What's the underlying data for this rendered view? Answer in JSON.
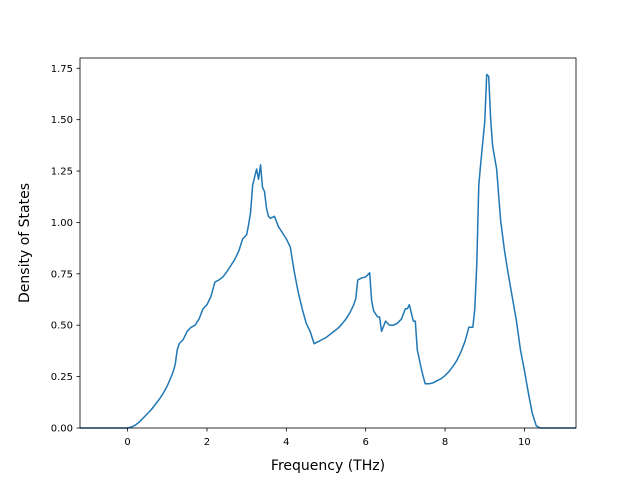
{
  "chart_data": {
    "type": "line",
    "title": "",
    "xlabel": "Frequency (THz)",
    "ylabel": "Density of States",
    "xlim": [
      -1.2,
      11.3
    ],
    "ylim": [
      0,
      1.8
    ],
    "x_ticks": [
      0,
      2,
      4,
      6,
      8,
      10
    ],
    "x_tick_labels": [
      "0",
      "2",
      "4",
      "6",
      "8",
      "10"
    ],
    "y_ticks": [
      0.0,
      0.25,
      0.5,
      0.75,
      1.0,
      1.25,
      1.5,
      1.75
    ],
    "y_tick_labels": [
      "0.00",
      "0.25",
      "0.50",
      "0.75",
      "1.00",
      "1.25",
      "1.50",
      "1.75"
    ],
    "grid": false,
    "legend": "none",
    "series": [
      {
        "color": "#1f77b4",
        "x": [
          -1.2,
          -0.5,
          0.0,
          0.1,
          0.2,
          0.3,
          0.4,
          0.5,
          0.6,
          0.7,
          0.8,
          0.9,
          1.0,
          1.1,
          1.15,
          1.2,
          1.25,
          1.3,
          1.4,
          1.5,
          1.6,
          1.7,
          1.8,
          1.9,
          2.0,
          2.1,
          2.2,
          2.3,
          2.4,
          2.5,
          2.6,
          2.7,
          2.8,
          2.9,
          3.0,
          3.05,
          3.1,
          3.15,
          3.2,
          3.25,
          3.3,
          3.35,
          3.4,
          3.45,
          3.5,
          3.55,
          3.6,
          3.7,
          3.8,
          3.9,
          4.0,
          4.1,
          4.2,
          4.3,
          4.4,
          4.5,
          4.6,
          4.7,
          4.8,
          4.9,
          5.0,
          5.1,
          5.2,
          5.3,
          5.4,
          5.5,
          5.6,
          5.7,
          5.75,
          5.8,
          5.9,
          6.0,
          6.05,
          6.1,
          6.15,
          6.2,
          6.3,
          6.35,
          6.4,
          6.5,
          6.6,
          6.7,
          6.8,
          6.9,
          7.0,
          7.05,
          7.1,
          7.2,
          7.25,
          7.3,
          7.4,
          7.45,
          7.5,
          7.6,
          7.7,
          7.8,
          7.9,
          8.0,
          8.1,
          8.2,
          8.3,
          8.4,
          8.5,
          8.6,
          8.7,
          8.75,
          8.8,
          8.85,
          8.9,
          9.0,
          9.05,
          9.1,
          9.15,
          9.2,
          9.3,
          9.4,
          9.5,
          9.6,
          9.7,
          9.8,
          9.9,
          10.0,
          10.1,
          10.2,
          10.3,
          10.4,
          11.3
        ],
        "y": [
          0.0,
          0.0,
          0.0,
          0.005,
          0.015,
          0.03,
          0.05,
          0.07,
          0.09,
          0.115,
          0.14,
          0.17,
          0.205,
          0.25,
          0.275,
          0.31,
          0.38,
          0.41,
          0.43,
          0.47,
          0.49,
          0.5,
          0.53,
          0.58,
          0.6,
          0.64,
          0.71,
          0.72,
          0.735,
          0.76,
          0.79,
          0.82,
          0.86,
          0.92,
          0.94,
          0.99,
          1.05,
          1.18,
          1.22,
          1.26,
          1.21,
          1.28,
          1.17,
          1.15,
          1.07,
          1.03,
          1.02,
          1.03,
          0.98,
          0.95,
          0.92,
          0.88,
          0.76,
          0.66,
          0.58,
          0.51,
          0.47,
          0.41,
          0.42,
          0.43,
          0.44,
          0.455,
          0.47,
          0.485,
          0.505,
          0.53,
          0.56,
          0.6,
          0.63,
          0.72,
          0.73,
          0.735,
          0.745,
          0.755,
          0.62,
          0.57,
          0.54,
          0.54,
          0.47,
          0.52,
          0.5,
          0.5,
          0.51,
          0.53,
          0.58,
          0.58,
          0.6,
          0.52,
          0.52,
          0.38,
          0.29,
          0.25,
          0.215,
          0.215,
          0.22,
          0.23,
          0.24,
          0.255,
          0.275,
          0.3,
          0.33,
          0.37,
          0.42,
          0.49,
          0.49,
          0.58,
          0.8,
          1.18,
          1.29,
          1.49,
          1.72,
          1.71,
          1.5,
          1.37,
          1.26,
          1.01,
          0.86,
          0.74,
          0.63,
          0.52,
          0.38,
          0.28,
          0.17,
          0.07,
          0.01,
          0.0,
          0.0
        ]
      }
    ]
  }
}
